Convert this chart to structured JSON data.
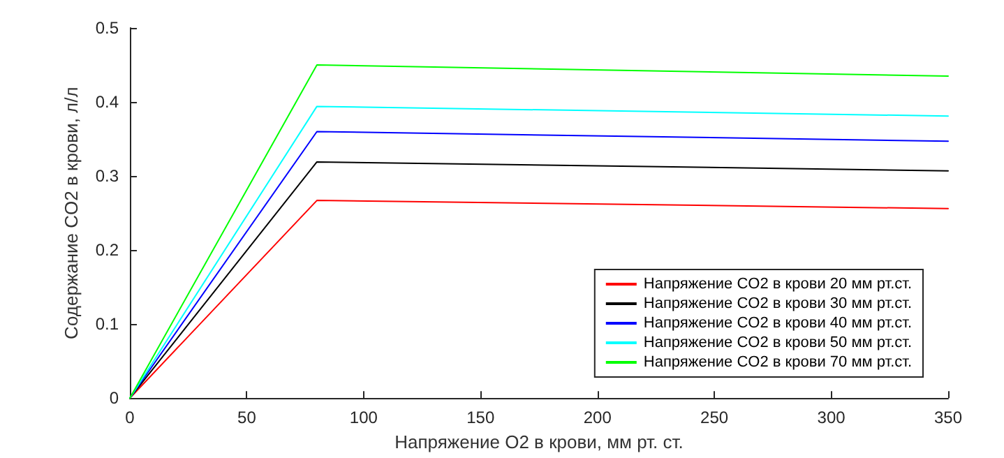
{
  "chart_data": {
    "type": "line",
    "xlabel": "Напряжение O2 в крови, мм рт. ст.",
    "ylabel": "Содержание CO2 в крови, л/л",
    "x": [
      0,
      80,
      350
    ],
    "series": [
      {
        "name": "Напряжение CO2 в крови 20 мм рт.ст.",
        "color": "#ff0000",
        "values": [
          0,
          0.267,
          0.256
        ]
      },
      {
        "name": "Напряжение CO2 в крови 30 мм рт.ст.",
        "color": "#000000",
        "values": [
          0,
          0.319,
          0.307
        ]
      },
      {
        "name": "Напряжение CO2 в крови 40 мм рт.ст.",
        "color": "#0000ff",
        "values": [
          0,
          0.36,
          0.347
        ]
      },
      {
        "name": "Напряжение CO2 в крови 50 мм рт.ст.",
        "color": "#00ffff",
        "values": [
          0,
          0.394,
          0.381
        ]
      },
      {
        "name": "Напряжение CO2 в крови 70 мм рт.ст.",
        "color": "#00ff00",
        "values": [
          0,
          0.45,
          0.435
        ]
      }
    ],
    "xlim": [
      0,
      350
    ],
    "xticks": [
      0,
      50,
      100,
      150,
      200,
      250,
      300,
      350
    ],
    "ylim": [
      0,
      0.5
    ],
    "yticks": [
      0,
      0.1,
      0.2,
      0.3,
      0.4,
      0.5
    ],
    "grid": false,
    "legend": "bottom right",
    "marker": "none",
    "line_style": "solid"
  }
}
